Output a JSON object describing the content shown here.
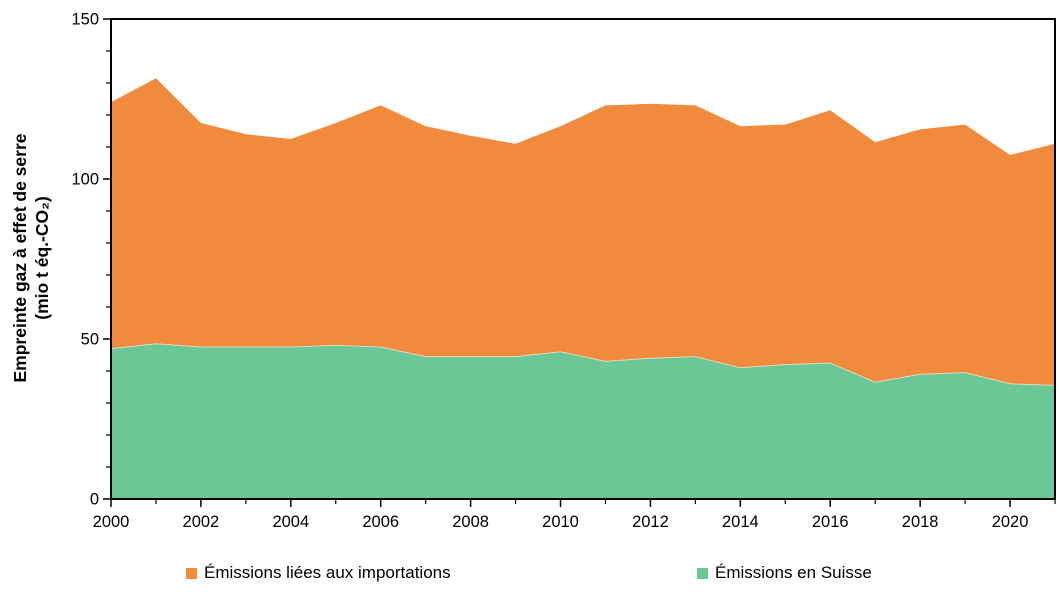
{
  "chart_data": {
    "type": "area",
    "stacked": true,
    "title": "",
    "ylabel_line1": "Empreinte gaz à effet de serre",
    "ylabel_line2": "(mio t éq.-CO₂)",
    "xlabel": "",
    "xlim": [
      2000,
      2021
    ],
    "ylim": [
      0,
      150
    ],
    "yticks_major": [
      0,
      50,
      100,
      150
    ],
    "ytick_minor_step": 10,
    "xticks_major": [
      2000,
      2002,
      2004,
      2006,
      2008,
      2010,
      2012,
      2014,
      2016,
      2018,
      2020
    ],
    "xtick_minor_years": [
      2001,
      2003,
      2005,
      2007,
      2009,
      2011,
      2013,
      2015,
      2017,
      2019,
      2021
    ],
    "grid": false,
    "legend_position": "bottom",
    "x": [
      2000,
      2001,
      2002,
      2003,
      2004,
      2005,
      2006,
      2007,
      2008,
      2009,
      2010,
      2011,
      2012,
      2013,
      2014,
      2015,
      2016,
      2017,
      2018,
      2019,
      2020,
      2021
    ],
    "series": [
      {
        "name": "Émissions en Suisse",
        "color": "#6CC796",
        "values": [
          47,
          48.5,
          47.5,
          47.5,
          47.5,
          48,
          47.5,
          44.5,
          44.5,
          44.5,
          46,
          43,
          44,
          44.5,
          41,
          42,
          42.5,
          36.5,
          39,
          39.5,
          36,
          35.5
        ]
      },
      {
        "name": "Émissions liées aux importations",
        "color": "#F08A3C",
        "values": [
          77,
          83,
          70,
          66.5,
          65,
          69.5,
          75.5,
          72,
          69,
          66.5,
          70.5,
          80,
          79.5,
          78.5,
          75.5,
          75,
          79,
          75,
          76.5,
          77.5,
          71.5,
          75.5
        ]
      }
    ],
    "totals": [
      124,
      131.5,
      117.5,
      114,
      112.5,
      117.5,
      123,
      116.5,
      113.5,
      111,
      116.5,
      123,
      123.5,
      123,
      116.5,
      117,
      121.5,
      111.5,
      115.5,
      117,
      107.5,
      111
    ]
  },
  "legend": {
    "items": [
      {
        "label": "Émissions liées aux importations",
        "color": "#F08A3C"
      },
      {
        "label": "Émissions en Suisse",
        "color": "#6CC796"
      }
    ]
  },
  "axis": {
    "color": "#000000",
    "tick_label_color": "#000000"
  }
}
